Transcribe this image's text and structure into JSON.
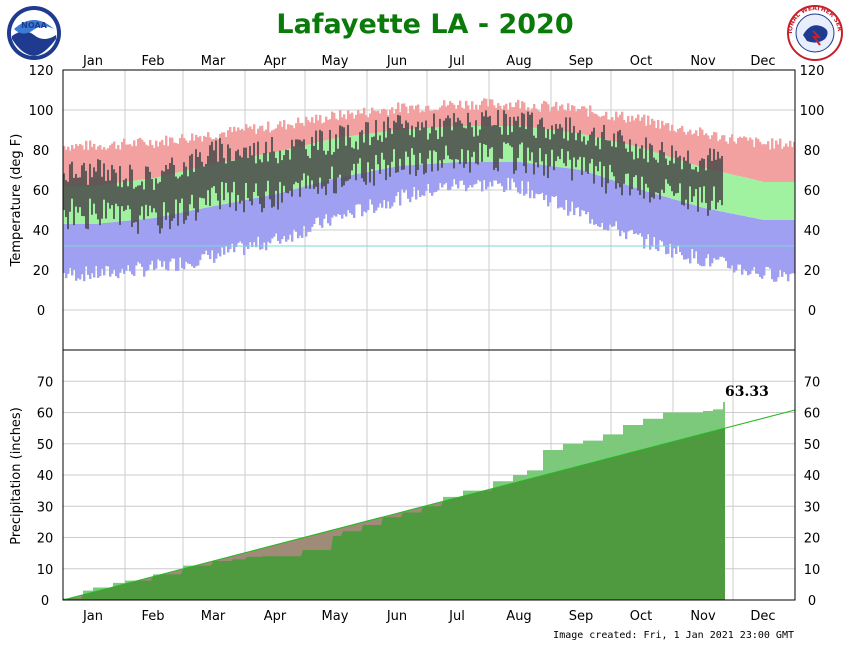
{
  "title": "Lafayette LA - 2020",
  "credit": "Image created: Fri, 1 Jan 2021 23:00 GMT",
  "logos": {
    "left": {
      "name": "noaa-logo",
      "text": "NOAA"
    },
    "right": {
      "name": "nws-logo",
      "text": "NATIONAL WEATHER SERVICE"
    }
  },
  "colors": {
    "title": "#0a7a0a",
    "record_high": "#f2a0a0",
    "normal_high": "#a0f2a0",
    "normal_low": "#a0a0f2",
    "record_low": "#a0a0f2",
    "observed": "#4a4a4a",
    "freezing_line": "#7fd4d4",
    "precip_observed": "#7cc97c",
    "precip_normal": "#4f9a3e",
    "precip_below_normal": "#a08a78",
    "normal_line": "#22bb22"
  },
  "chart_data": [
    {
      "type": "bar",
      "subtype": "daily temperature range",
      "ylabel": "Temperature (deg F)",
      "ylim": [
        -20,
        120
      ],
      "yticks": [
        0,
        20,
        40,
        60,
        80,
        100,
        120
      ],
      "months": [
        "Jan",
        "Feb",
        "Mar",
        "Apr",
        "May",
        "Jun",
        "Jul",
        "Aug",
        "Sep",
        "Oct",
        "Nov",
        "Dec"
      ],
      "grid": true,
      "freezing_line": 32,
      "normal_high_monthly": [
        62,
        66,
        73,
        79,
        86,
        90,
        92,
        92,
        88,
        81,
        71,
        64
      ],
      "normal_low_monthly": [
        43,
        46,
        52,
        58,
        66,
        72,
        74,
        74,
        70,
        60,
        51,
        45
      ],
      "record_high_monthly": [
        82,
        84,
        88,
        92,
        97,
        101,
        103,
        103,
        100,
        95,
        88,
        83
      ],
      "record_low_monthly": [
        18,
        21,
        27,
        35,
        46,
        56,
        63,
        62,
        48,
        35,
        25,
        18
      ],
      "observed_high_monthly": [
        69,
        66,
        79,
        80,
        85,
        91,
        93,
        93,
        89,
        81,
        75,
        null
      ],
      "observed_low_monthly": [
        48,
        45,
        56,
        57,
        65,
        73,
        76,
        76,
        71,
        59,
        55,
        null
      ],
      "observed_through_day": 330
    },
    {
      "type": "area",
      "subtype": "cumulative precipitation",
      "ylabel": "Precipitation (inches)",
      "ylim": [
        0,
        80
      ],
      "yticks": [
        0,
        10,
        20,
        30,
        40,
        50,
        60,
        70
      ],
      "months": [
        "Jan",
        "Feb",
        "Mar",
        "Apr",
        "May",
        "Jun",
        "Jul",
        "Aug",
        "Sep",
        "Oct",
        "Nov",
        "Dec"
      ],
      "grid": true,
      "annotation": "63.33",
      "normal_total": 60.8,
      "observed_cumulative": [
        [
          0,
          0.5
        ],
        [
          10,
          3
        ],
        [
          15,
          4
        ],
        [
          25,
          5.5
        ],
        [
          31,
          6.2
        ],
        [
          45,
          8.2
        ],
        [
          60,
          11
        ],
        [
          75,
          12.5
        ],
        [
          85,
          13
        ],
        [
          92,
          13.8
        ],
        [
          100,
          14
        ],
        [
          110,
          14
        ],
        [
          120,
          16
        ],
        [
          135,
          20.5
        ],
        [
          140,
          22
        ],
        [
          150,
          24
        ],
        [
          160,
          26.5
        ],
        [
          170,
          28
        ],
        [
          180,
          30
        ],
        [
          190,
          33
        ],
        [
          200,
          35
        ],
        [
          215,
          38
        ],
        [
          225,
          40
        ],
        [
          232,
          41.5
        ],
        [
          240,
          48
        ],
        [
          250,
          50
        ],
        [
          260,
          51
        ],
        [
          270,
          53
        ],
        [
          280,
          56
        ],
        [
          290,
          58
        ],
        [
          300,
          60
        ],
        [
          310,
          60
        ],
        [
          320,
          60.5
        ],
        [
          325,
          61
        ],
        [
          330,
          63.33
        ]
      ]
    }
  ]
}
